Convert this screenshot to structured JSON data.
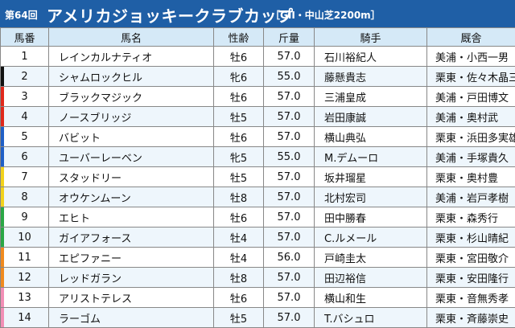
{
  "header": {
    "edition": "第64回",
    "race_name": "アメリカジョッキークラブカップ",
    "grade_course": "［GII・中山芝2200m］"
  },
  "columns": {
    "number": "馬番",
    "horse": "馬名",
    "sex_age": "性齢",
    "weight": "斤量",
    "jockey": "騎手",
    "trainer": "厩舎"
  },
  "colors": {
    "banner": "#1f5fa6",
    "header_row": "#d5e9f7",
    "row_alt": "#eef6fc"
  },
  "entries": [
    {
      "number": "1",
      "horse": "レインカルナティオ",
      "sex_age": "牡6",
      "weight": "57.0",
      "jockey": "石川裕紀人",
      "trainer": "美浦・小西一男",
      "frame_color": "#ffffff"
    },
    {
      "number": "2",
      "horse": "シャムロックヒル",
      "sex_age": "牝6",
      "weight": "55.0",
      "jockey": "藤懸貴志",
      "trainer": "栗東・佐々木晶三",
      "frame_color": "#111111"
    },
    {
      "number": "3",
      "horse": "ブラックマジック",
      "sex_age": "牡6",
      "weight": "57.0",
      "jockey": "三浦皇成",
      "trainer": "美浦・戸田博文",
      "frame_color": "#e0281b"
    },
    {
      "number": "4",
      "horse": "ノースブリッジ",
      "sex_age": "牡5",
      "weight": "57.0",
      "jockey": "岩田康誠",
      "trainer": "美浦・奥村武",
      "frame_color": "#e0281b"
    },
    {
      "number": "5",
      "horse": "バビット",
      "sex_age": "牡6",
      "weight": "57.0",
      "jockey": "横山典弘",
      "trainer": "栗東・浜田多実雄",
      "frame_color": "#1f5fc6"
    },
    {
      "number": "6",
      "horse": "ユーバーレーベン",
      "sex_age": "牝5",
      "weight": "55.0",
      "jockey": "M.デムーロ",
      "trainer": "美浦・手塚貴久",
      "frame_color": "#1f5fc6"
    },
    {
      "number": "7",
      "horse": "スタッドリー",
      "sex_age": "牡5",
      "weight": "57.0",
      "jockey": "坂井瑠星",
      "trainer": "栗東・奥村豊",
      "frame_color": "#f2d21b"
    },
    {
      "number": "8",
      "horse": "オウケンムーン",
      "sex_age": "牡8",
      "weight": "57.0",
      "jockey": "北村宏司",
      "trainer": "美浦・岩戸孝樹",
      "frame_color": "#f2d21b"
    },
    {
      "number": "9",
      "horse": "エヒト",
      "sex_age": "牡6",
      "weight": "57.0",
      "jockey": "田中勝春",
      "trainer": "栗東・森秀行",
      "frame_color": "#2aa745"
    },
    {
      "number": "10",
      "horse": "ガイアフォース",
      "sex_age": "牡4",
      "weight": "57.0",
      "jockey": "C.ルメール",
      "trainer": "栗東・杉山晴紀",
      "frame_color": "#2aa745"
    },
    {
      "number": "11",
      "horse": "エピファニー",
      "sex_age": "牡4",
      "weight": "56.0",
      "jockey": "戸崎圭太",
      "trainer": "栗東・宮田敬介",
      "frame_color": "#f08a1e"
    },
    {
      "number": "12",
      "horse": "レッドガラン",
      "sex_age": "牡8",
      "weight": "57.0",
      "jockey": "田辺裕信",
      "trainer": "栗東・安田隆行",
      "frame_color": "#f08a1e"
    },
    {
      "number": "13",
      "horse": "アリストテレス",
      "sex_age": "牡6",
      "weight": "57.0",
      "jockey": "横山和生",
      "trainer": "栗東・音無秀孝",
      "frame_color": "#f28fb6"
    },
    {
      "number": "14",
      "horse": "ラーゴム",
      "sex_age": "牡5",
      "weight": "57.0",
      "jockey": "T.バシュロ",
      "trainer": "栗東・斉藤崇史",
      "frame_color": "#f28fb6"
    }
  ]
}
